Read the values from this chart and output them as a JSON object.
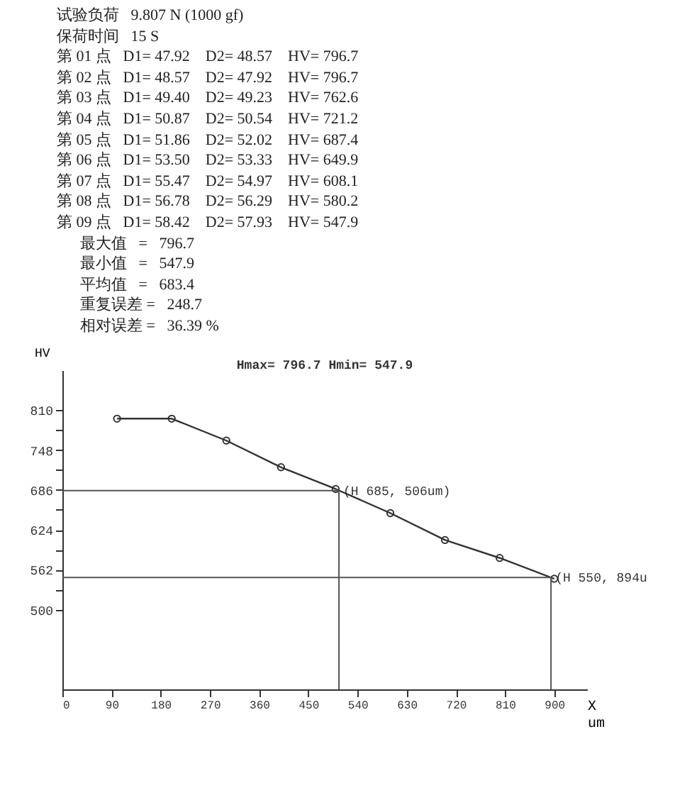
{
  "chart_data": {
    "type": "line",
    "title": "Hmax= 796.7  Hmin= 547.9",
    "xlabel": "X um",
    "ylabel": "HV",
    "x": [
      100,
      200,
      300,
      400,
      500,
      600,
      700,
      800,
      900
    ],
    "values": [
      796.7,
      796.7,
      762.6,
      721.2,
      687.4,
      649.9,
      608.1,
      580.2,
      547.9
    ],
    "color": "#333333",
    "marker": "circle",
    "xlim": [
      0,
      960
    ],
    "xticks": [
      0,
      90,
      180,
      270,
      360,
      450,
      540,
      630,
      720,
      810,
      900
    ],
    "ylim": [
      376,
      872
    ],
    "yticks": [
      500,
      {
        "value": 531,
        "label": null
      },
      562,
      {
        "value": 593,
        "label": null
      },
      624,
      {
        "value": 655,
        "label": null
      },
      686,
      {
        "value": 717,
        "label": null
      },
      748,
      {
        "value": 779,
        "label": null
      },
      810
    ],
    "grid": false,
    "ref_lines": [
      {
        "axis": "y",
        "value": 685,
        "color": "#555555"
      },
      {
        "axis": "x",
        "value": 506,
        "color": "#555555"
      },
      {
        "axis": "y",
        "value": 550,
        "color": "#555555"
      },
      {
        "axis": "x",
        "value": 894,
        "color": "#555555"
      }
    ],
    "annotations": [
      "试验负荷   9.807 N (1000 gf)",
      "保荷时间   15 S",
      "第 01 点   D1= 47.92    D2= 48.57    HV= 796.7",
      "第 02 点   D1= 48.57    D2= 47.92    HV= 796.7",
      "第 03 点   D1= 49.40    D2= 49.23    HV= 762.6",
      "第 04 点   D1= 50.87    D2= 50.54    HV= 721.2",
      "第 05 点   D1= 51.86    D2= 52.02    HV= 687.4",
      "第 06 点   D1= 53.50    D2= 53.33    HV= 649.9",
      "第 07 点   D1= 55.47    D2= 54.97    HV= 608.1",
      "第 08 点   D1= 56.78    D2= 56.29    HV= 580.2",
      "第 09 点   D1= 58.42    D2= 57.93    HV= 547.9",
      "      最大值   =   796.7",
      "      最小值   =   547.9",
      "      平均值   =   683.4",
      "      重复误差 =   248.7",
      "      相对误差 =   36.39 %",
      {
        "text": "(H 685, 506um)",
        "x": 506,
        "y": 685
      },
      {
        "text": "(H 550, 894u",
        "x": 894,
        "y": 550
      }
    ]
  }
}
